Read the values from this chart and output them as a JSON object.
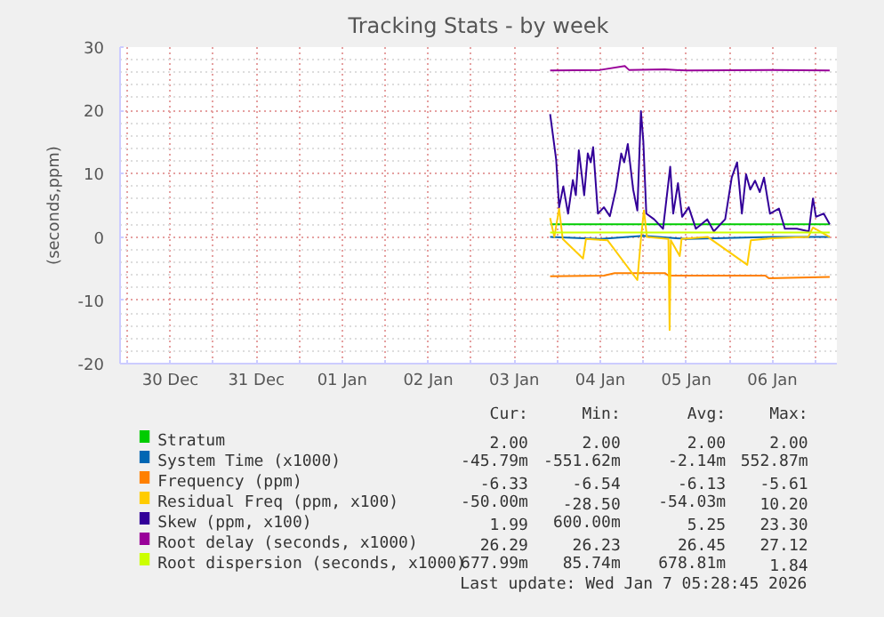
{
  "chart_data": {
    "type": "line",
    "title": "Tracking Stats - by week",
    "ylabel": "(seconds,ppm)",
    "xlim": [
      "2025-12-29T22:00",
      "2026-01-07T06:00"
    ],
    "xticks": [
      {
        "value": "2025-12-30T00:00",
        "label": null
      },
      {
        "value": "2025-12-30T12:00",
        "label": "30 Dec"
      },
      {
        "value": "2025-12-31T00:00",
        "label": null
      },
      {
        "value": "2025-12-31T12:00",
        "label": "31 Dec"
      },
      {
        "value": "2026-01-01T00:00",
        "label": null
      },
      {
        "value": "2026-01-01T12:00",
        "label": "01 Jan"
      },
      {
        "value": "2026-01-02T00:00",
        "label": null
      },
      {
        "value": "2026-01-02T12:00",
        "label": "02 Jan"
      },
      {
        "value": "2026-01-03T00:00",
        "label": null
      },
      {
        "value": "2026-01-03T12:00",
        "label": "03 Jan"
      },
      {
        "value": "2026-01-04T00:00",
        "label": null
      },
      {
        "value": "2026-01-04T12:00",
        "label": "04 Jan"
      },
      {
        "value": "2026-01-05T00:00",
        "label": null
      },
      {
        "value": "2026-01-05T12:00",
        "label": "05 Jan"
      },
      {
        "value": "2026-01-06T00:00",
        "label": null
      },
      {
        "value": "2026-01-06T12:00",
        "label": "06 Jan"
      },
      {
        "value": "2026-01-07T00:00",
        "label": null
      }
    ],
    "ylim": [
      -20,
      30
    ],
    "yticks": [
      -20,
      -10,
      0,
      10,
      20,
      30
    ],
    "grid": true,
    "legend": "bottom",
    "series": [
      {
        "name": "Stratum",
        "color": "#00cc00",
        "x": [
          "2026-01-03T22:00",
          "2026-01-07T04:00"
        ],
        "values": [
          2,
          2
        ]
      },
      {
        "name": "System Time (x1000)",
        "color": "#0066b3",
        "x": [
          "2026-01-03T22:00",
          "2026-01-04T12:00",
          "2026-01-05T00:00",
          "2026-01-05T12:00",
          "2026-01-06T12:00",
          "2026-01-07T04:00"
        ],
        "values": [
          0,
          -0.3,
          0.2,
          -0.3,
          0,
          0
        ]
      },
      {
        "name": "Frequency (ppm)",
        "color": "#ff8000",
        "x": [
          "2026-01-03T22:00",
          "2026-01-04T13:00",
          "2026-01-04T16:00",
          "2026-01-05T06:00",
          "2026-01-05T07:00",
          "2026-01-06T10:00",
          "2026-01-06T11:00",
          "2026-01-07T04:00"
        ],
        "values": [
          -6.2,
          -6.1,
          -5.7,
          -5.7,
          -6.1,
          -6.1,
          -6.5,
          -6.3
        ]
      },
      {
        "name": "Residual Freq (ppm, x100)",
        "color": "#ffcc00",
        "x": [
          "2026-01-03T22:00",
          "2026-01-03T23:10",
          "2026-01-04T00:30",
          "2026-01-04T01:30",
          "2026-01-04T07:10",
          "2026-01-04T08:00",
          "2026-01-04T14:00",
          "2026-01-04T22:20",
          "2026-01-04T23:20",
          "2026-01-05T00:10",
          "2026-01-05T01:00",
          "2026-01-05T07:00",
          "2026-01-05T07:20",
          "2026-01-05T07:40",
          "2026-01-05T10:10",
          "2026-01-05T10:40",
          "2026-01-05T18:00",
          "2026-01-06T05:00",
          "2026-01-06T06:00",
          "2026-01-06T12:00",
          "2026-01-06T22:00",
          "2026-01-06T23:20",
          "2026-01-07T04:00"
        ],
        "values": [
          3.0,
          0,
          4.5,
          -0.3,
          -3.4,
          -0.3,
          -0.5,
          -6.8,
          -0.3,
          4.2,
          0,
          -0.3,
          -14.7,
          -0.5,
          -3.0,
          -0.3,
          0,
          -4.4,
          -0.5,
          -0.2,
          0,
          1.5,
          0
        ]
      },
      {
        "name": "Skew (ppm, x100)",
        "color": "#330099",
        "x": [
          "2026-01-03T22:00",
          "2026-01-03T23:40",
          "2026-01-04T00:30",
          "2026-01-04T01:40",
          "2026-01-04T03:00",
          "2026-01-04T04:20",
          "2026-01-04T05:10",
          "2026-01-04T06:00",
          "2026-01-04T07:30",
          "2026-01-04T08:30",
          "2026-01-04T09:20",
          "2026-01-04T10:00",
          "2026-01-04T11:20",
          "2026-01-04T13:00",
          "2026-01-04T14:40",
          "2026-01-04T16:20",
          "2026-01-04T17:50",
          "2026-01-04T18:40",
          "2026-01-04T19:40",
          "2026-01-04T21:10",
          "2026-01-04T22:20",
          "2026-01-04T23:20",
          "2026-01-05T00:00",
          "2026-01-05T00:50",
          "2026-01-05T03:00",
          "2026-01-05T05:30",
          "2026-01-05T07:30",
          "2026-01-05T08:20",
          "2026-01-05T09:40",
          "2026-01-05T10:50",
          "2026-01-05T12:40",
          "2026-01-05T14:40",
          "2026-01-05T17:50",
          "2026-01-05T19:40",
          "2026-01-05T22:50",
          "2026-01-06T00:40",
          "2026-01-06T02:10",
          "2026-01-06T03:30",
          "2026-01-06T04:40",
          "2026-01-06T05:50",
          "2026-01-06T07:10",
          "2026-01-06T08:30",
          "2026-01-06T09:40",
          "2026-01-06T11:20",
          "2026-01-06T13:50",
          "2026-01-06T15:30",
          "2026-01-06T18:50",
          "2026-01-06T22:10",
          "2026-01-06T23:20",
          "2026-01-07T00:10",
          "2026-01-07T02:20",
          "2026-01-07T04:00"
        ],
        "values": [
          19.4,
          12.3,
          4.7,
          8.0,
          3.7,
          9.0,
          6.6,
          13.7,
          6.6,
          13.2,
          11.8,
          14.2,
          3.7,
          4.7,
          3.3,
          7.5,
          13.2,
          11.8,
          14.7,
          7.5,
          4.2,
          19.9,
          15.1,
          3.7,
          2.8,
          1.3,
          11.1,
          3.7,
          8.5,
          3.2,
          4.7,
          1.3,
          2.8,
          0.9,
          2.8,
          9.4,
          11.8,
          3.7,
          9.9,
          7.5,
          8.9,
          7.1,
          9.4,
          3.7,
          4.5,
          1.3,
          1.3,
          0.9,
          6.1,
          3.2,
          3.7,
          2.0
        ]
      },
      {
        "name": "Root delay (seconds, x1000)",
        "color": "#990099",
        "x": [
          "2026-01-03T22:00",
          "2026-01-04T12:00",
          "2026-01-04T18:50",
          "2026-01-04T20:00",
          "2026-01-05T06:00",
          "2026-01-05T12:00",
          "2026-01-06T12:00",
          "2026-01-07T04:00"
        ],
        "values": [
          26.3,
          26.4,
          27.0,
          26.4,
          26.5,
          26.3,
          26.4,
          26.3
        ]
      },
      {
        "name": "Root dispersion (seconds, x1000)",
        "color": "#ccff00",
        "x": [
          "2026-01-03T22:00",
          "2026-01-07T04:00"
        ],
        "values": [
          0.7,
          0.7
        ]
      }
    ],
    "annotations": [
      "Cur: Min: Avg: Max:",
      "2.00 2.00 2.00 2.00",
      "-45.79m -551.62m -2.14m 552.87m",
      "-6.33 -6.54 -6.13 -5.61",
      "-50.00m -28.50 -54.03m 10.20",
      "1.99 600.00m 5.25 23.30",
      "26.29 26.23 26.45 27.12",
      "677.99m 85.74m 678.81m 1.84",
      "Last update: Wed Jan  7 05:28:45 2026"
    ]
  }
}
